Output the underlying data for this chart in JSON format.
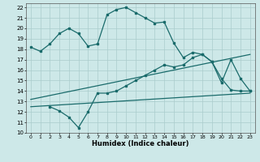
{
  "xlabel": "Humidex (Indice chaleur)",
  "background_color": "#cde8e8",
  "grid_color": "#aacccc",
  "line_color": "#1a6b6b",
  "xlim": [
    -0.5,
    23.5
  ],
  "ylim": [
    10,
    22.4
  ],
  "xticks": [
    0,
    1,
    2,
    3,
    4,
    5,
    6,
    7,
    8,
    9,
    10,
    11,
    12,
    13,
    14,
    15,
    16,
    17,
    18,
    19,
    20,
    21,
    22,
    23
  ],
  "yticks": [
    10,
    11,
    12,
    13,
    14,
    15,
    16,
    17,
    18,
    19,
    20,
    21,
    22
  ],
  "line1_x": [
    0,
    1,
    2,
    3,
    4,
    5,
    6,
    7,
    8,
    9,
    10,
    11,
    12,
    13,
    14,
    15,
    16,
    17,
    18,
    19,
    20,
    21,
    22,
    23
  ],
  "line1_y": [
    18.2,
    17.8,
    18.5,
    19.5,
    20.0,
    19.5,
    18.3,
    18.5,
    21.3,
    21.8,
    22.0,
    21.5,
    21.0,
    20.5,
    20.6,
    18.6,
    17.2,
    17.7,
    17.5,
    16.8,
    15.2,
    14.1,
    14.0,
    14.0
  ],
  "line2_x": [
    2,
    3,
    4,
    5,
    6,
    7,
    8,
    9,
    10,
    11,
    12,
    13,
    14,
    15,
    16,
    17,
    18,
    19,
    20,
    21,
    22,
    23
  ],
  "line2_y": [
    12.5,
    12.1,
    11.5,
    10.5,
    12.0,
    13.8,
    13.8,
    14.0,
    14.5,
    15.0,
    15.5,
    16.0,
    16.5,
    16.3,
    16.5,
    17.2,
    17.5,
    16.8,
    14.8,
    17.0,
    15.2,
    14.0
  ],
  "line3_x": [
    0,
    23
  ],
  "line3_y": [
    12.5,
    13.8
  ],
  "line4_x": [
    0,
    23
  ],
  "line4_y": [
    13.2,
    17.5
  ]
}
